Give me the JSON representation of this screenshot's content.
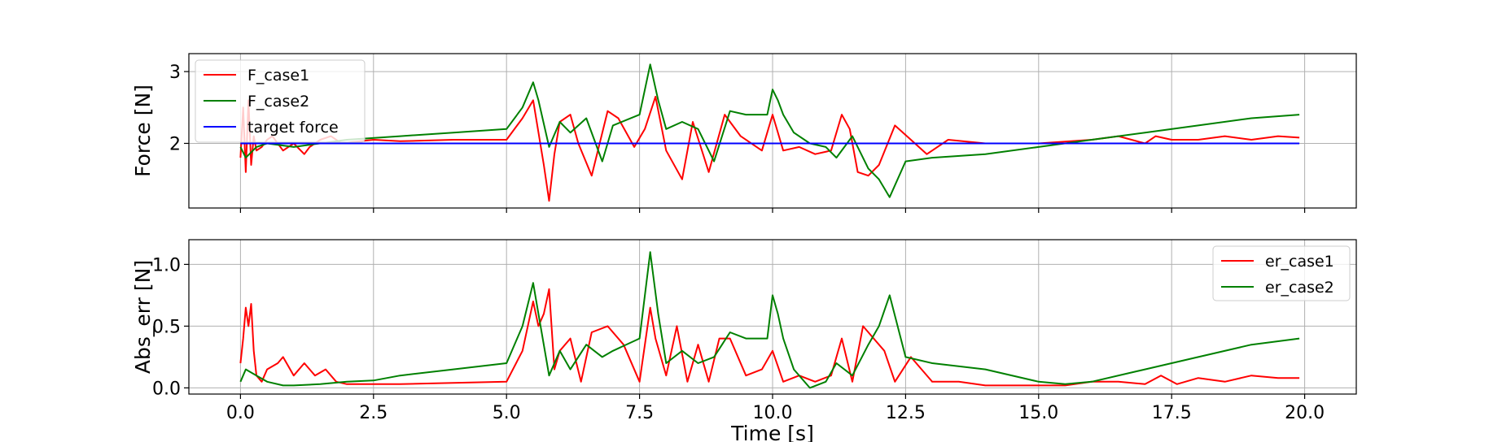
{
  "chart_data": [
    {
      "type": "line",
      "ylabel": "Force [N]",
      "xlim": [
        -0.97,
        20.97
      ],
      "ylim": [
        1.1,
        3.25
      ],
      "xticks": [
        0.0,
        2.5,
        5.0,
        7.5,
        10.0,
        12.5,
        15.0,
        17.5,
        20.0
      ],
      "yticks": [
        2,
        3
      ],
      "ytick_labels": [
        "2",
        "3"
      ],
      "grid": true,
      "legend": "upper-left",
      "series": [
        {
          "name": "F_case1",
          "color": "#ff0000",
          "x": [
            0.0,
            0.05,
            0.1,
            0.15,
            0.2,
            0.25,
            0.3,
            0.4,
            0.5,
            0.6,
            0.8,
            1.0,
            1.2,
            1.3,
            1.5,
            1.7,
            1.9,
            2.1,
            2.5,
            3.0,
            4.0,
            5.0,
            5.3,
            5.5,
            5.7,
            5.8,
            5.9,
            6.0,
            6.2,
            6.35,
            6.6,
            6.9,
            7.1,
            7.4,
            7.6,
            7.8,
            8.0,
            8.3,
            8.5,
            8.8,
            9.1,
            9.4,
            9.8,
            10.0,
            10.2,
            10.5,
            10.8,
            11.1,
            11.3,
            11.45,
            11.6,
            11.8,
            12.0,
            12.3,
            12.6,
            12.9,
            13.3,
            14.0,
            15.0,
            16.0,
            16.5,
            17.0,
            17.2,
            17.5,
            18.0,
            18.5,
            19.0,
            19.5,
            19.9
          ],
          "y": [
            1.8,
            2.5,
            1.6,
            2.6,
            1.7,
            2.1,
            1.9,
            1.95,
            2.05,
            2.1,
            1.9,
            2.0,
            1.85,
            1.95,
            2.05,
            2.1,
            2.0,
            2.02,
            2.05,
            2.03,
            2.05,
            2.05,
            2.35,
            2.6,
            1.7,
            1.2,
            1.85,
            2.3,
            2.4,
            2.0,
            1.55,
            2.45,
            2.35,
            1.95,
            2.2,
            2.65,
            1.9,
            1.5,
            2.3,
            1.6,
            2.4,
            2.1,
            1.9,
            2.4,
            1.9,
            1.95,
            1.85,
            1.9,
            2.4,
            2.2,
            1.6,
            1.55,
            1.7,
            2.25,
            2.05,
            1.85,
            2.05,
            2.0,
            2.0,
            2.05,
            2.1,
            2.0,
            2.1,
            2.05,
            2.05,
            2.1,
            2.05,
            2.1,
            2.08
          ]
        },
        {
          "name": "F_case2",
          "color": "#008000",
          "x": [
            0.0,
            0.1,
            0.3,
            0.5,
            1.0,
            2.0,
            3.0,
            4.0,
            5.0,
            5.3,
            5.5,
            5.6,
            5.8,
            6.0,
            6.2,
            6.5,
            6.8,
            7.0,
            7.5,
            7.7,
            7.85,
            8.0,
            8.3,
            8.6,
            8.9,
            9.2,
            9.5,
            9.9,
            10.0,
            10.1,
            10.2,
            10.4,
            10.7,
            11.0,
            11.2,
            11.5,
            11.8,
            12.0,
            12.2,
            12.5,
            13.0,
            14.0,
            15.0,
            16.0,
            17.0,
            18.0,
            19.0,
            19.9
          ],
          "y": [
            1.95,
            1.8,
            1.95,
            2.0,
            1.95,
            2.05,
            2.1,
            2.15,
            2.2,
            2.5,
            2.85,
            2.6,
            1.95,
            2.3,
            2.15,
            2.35,
            1.75,
            2.25,
            2.4,
            3.1,
            2.6,
            2.2,
            2.3,
            2.2,
            1.75,
            2.45,
            2.4,
            2.4,
            2.75,
            2.6,
            2.4,
            2.15,
            2.0,
            1.95,
            1.8,
            2.1,
            1.65,
            1.5,
            1.25,
            1.75,
            1.8,
            1.85,
            1.95,
            2.05,
            2.15,
            2.25,
            2.35,
            2.4
          ]
        },
        {
          "name": "target force",
          "color": "#0000ff",
          "x": [
            0.0,
            19.9
          ],
          "y": [
            2.0,
            2.0
          ]
        }
      ]
    },
    {
      "type": "line",
      "xlabel": "Time [s]",
      "ylabel": "Abs_err [N]",
      "xlim": [
        -0.97,
        20.97
      ],
      "ylim": [
        -0.05,
        1.2
      ],
      "xticks": [
        0.0,
        2.5,
        5.0,
        7.5,
        10.0,
        12.5,
        15.0,
        17.5,
        20.0
      ],
      "xtick_labels": [
        "0.0",
        "2.5",
        "5.0",
        "7.5",
        "10.0",
        "12.5",
        "15.0",
        "17.5",
        "20.0"
      ],
      "yticks": [
        0.0,
        0.5,
        1.0
      ],
      "ytick_labels": [
        "0.0",
        "0.5",
        "1.0"
      ],
      "grid": true,
      "legend": "upper-right",
      "series": [
        {
          "name": "er_case1",
          "color": "#ff0000",
          "x": [
            0.0,
            0.05,
            0.1,
            0.15,
            0.2,
            0.25,
            0.3,
            0.4,
            0.5,
            0.7,
            0.8,
            1.0,
            1.2,
            1.4,
            1.6,
            1.8,
            2.0,
            2.5,
            3.0,
            4.0,
            5.0,
            5.3,
            5.5,
            5.6,
            5.7,
            5.8,
            5.9,
            6.0,
            6.2,
            6.4,
            6.6,
            6.9,
            7.2,
            7.5,
            7.7,
            7.8,
            8.0,
            8.2,
            8.4,
            8.6,
            8.8,
            9.0,
            9.2,
            9.5,
            9.8,
            10.0,
            10.2,
            10.5,
            10.8,
            11.1,
            11.3,
            11.5,
            11.7,
            11.9,
            12.1,
            12.3,
            12.6,
            13.0,
            13.5,
            14.0,
            15.0,
            15.5,
            16.0,
            16.5,
            17.0,
            17.3,
            17.6,
            18.0,
            18.5,
            19.0,
            19.5,
            19.9
          ],
          "y": [
            0.2,
            0.4,
            0.65,
            0.5,
            0.68,
            0.3,
            0.1,
            0.05,
            0.15,
            0.2,
            0.25,
            0.1,
            0.2,
            0.1,
            0.15,
            0.05,
            0.03,
            0.03,
            0.03,
            0.04,
            0.05,
            0.3,
            0.7,
            0.5,
            0.6,
            0.8,
            0.15,
            0.3,
            0.4,
            0.05,
            0.45,
            0.5,
            0.35,
            0.05,
            0.65,
            0.4,
            0.1,
            0.5,
            0.05,
            0.35,
            0.05,
            0.4,
            0.4,
            0.1,
            0.15,
            0.3,
            0.05,
            0.1,
            0.05,
            0.1,
            0.4,
            0.05,
            0.5,
            0.4,
            0.3,
            0.05,
            0.25,
            0.05,
            0.05,
            0.02,
            0.02,
            0.02,
            0.05,
            0.05,
            0.03,
            0.1,
            0.03,
            0.08,
            0.05,
            0.1,
            0.08,
            0.08
          ]
        },
        {
          "name": "er_case2",
          "color": "#008000",
          "x": [
            0.0,
            0.1,
            0.3,
            0.5,
            0.8,
            1.0,
            1.5,
            2.0,
            2.5,
            3.0,
            4.0,
            5.0,
            5.3,
            5.5,
            5.6,
            5.8,
            6.0,
            6.2,
            6.5,
            6.8,
            7.0,
            7.5,
            7.7,
            7.85,
            8.0,
            8.3,
            8.6,
            8.9,
            9.2,
            9.5,
            9.9,
            10.0,
            10.1,
            10.2,
            10.4,
            10.7,
            11.0,
            11.2,
            11.5,
            11.8,
            12.0,
            12.2,
            12.5,
            13.0,
            14.0,
            15.0,
            15.5,
            16.0,
            17.0,
            18.0,
            19.0,
            19.9
          ],
          "y": [
            0.05,
            0.15,
            0.1,
            0.05,
            0.02,
            0.02,
            0.03,
            0.05,
            0.06,
            0.1,
            0.15,
            0.2,
            0.5,
            0.85,
            0.6,
            0.1,
            0.3,
            0.15,
            0.35,
            0.25,
            0.3,
            0.4,
            1.1,
            0.6,
            0.2,
            0.3,
            0.2,
            0.25,
            0.45,
            0.4,
            0.4,
            0.75,
            0.6,
            0.4,
            0.15,
            0.0,
            0.05,
            0.2,
            0.1,
            0.35,
            0.5,
            0.75,
            0.25,
            0.2,
            0.15,
            0.05,
            0.03,
            0.05,
            0.15,
            0.25,
            0.35,
            0.4
          ]
        }
      ]
    }
  ]
}
